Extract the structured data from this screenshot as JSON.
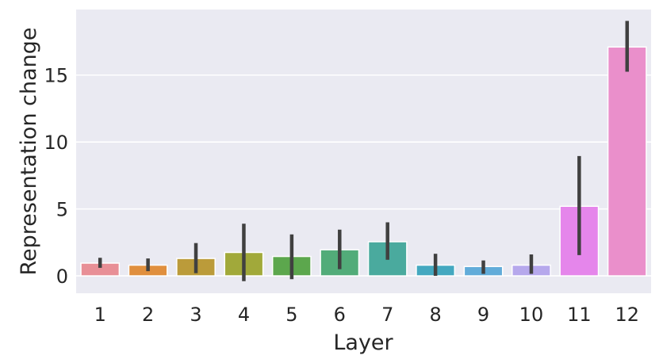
{
  "chart_data": {
    "type": "bar",
    "xlabel": "Layer",
    "ylabel": "Representation change",
    "categories": [
      "1",
      "2",
      "3",
      "4",
      "5",
      "6",
      "7",
      "8",
      "9",
      "10",
      "11",
      "12"
    ],
    "values": [
      0.95,
      0.8,
      1.3,
      1.75,
      1.45,
      1.95,
      2.55,
      0.8,
      0.7,
      0.8,
      5.2,
      17.1
    ],
    "error_low": [
      0.6,
      0.35,
      0.2,
      -0.4,
      -0.25,
      0.5,
      1.2,
      0.0,
      0.15,
      0.15,
      1.55,
      15.25
    ],
    "error_high": [
      1.35,
      1.3,
      2.45,
      3.9,
      3.1,
      3.45,
      4.0,
      1.65,
      1.15,
      1.6,
      8.95,
      19.05
    ],
    "ylim": [
      -1.3,
      19.9
    ],
    "yticks": [
      0,
      5,
      10,
      15
    ],
    "grid": true,
    "colors": [
      "#e88f96",
      "#e08f3e",
      "#bb9b3a",
      "#a1a93a",
      "#5ca74d",
      "#52ac79",
      "#4aaa9e",
      "#44a8c0",
      "#62acd9",
      "#b6a8ec",
      "#e586eb",
      "#ea8fcb"
    ],
    "error_color": "#404040",
    "background": "#eaeaf2"
  }
}
